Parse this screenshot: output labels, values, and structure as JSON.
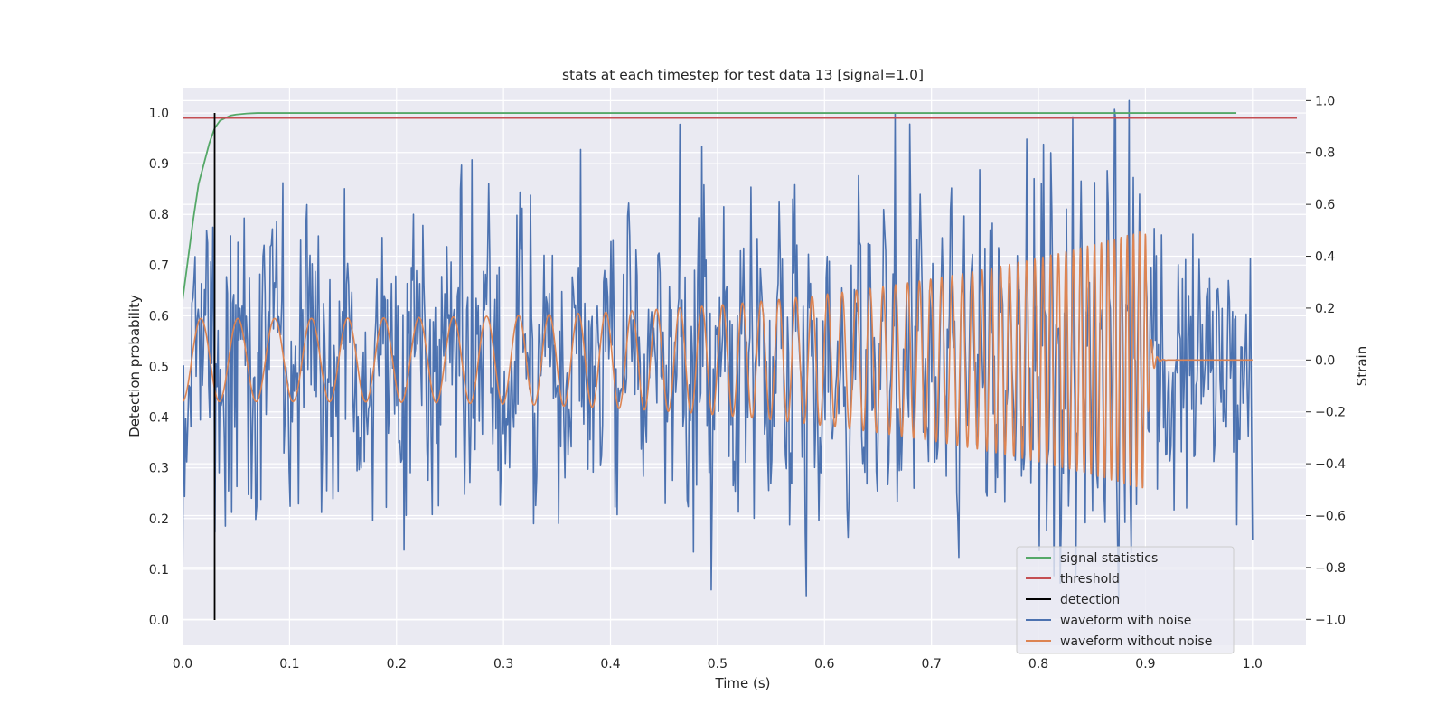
{
  "chart_data": {
    "type": "line",
    "title": "stats at each timestep for test data 13 [signal=1.0]",
    "xlabel": "Time (s)",
    "ylabel_left": "Detection probability",
    "ylabel_right": "Strain",
    "xlim": [
      0.0,
      1.05
    ],
    "ylim_left": [
      -0.05,
      1.05
    ],
    "ylim_right": [
      -1.1,
      1.05
    ],
    "x_ticks": [
      "0.0",
      "0.1",
      "0.2",
      "0.3",
      "0.4",
      "0.5",
      "0.6",
      "0.7",
      "0.8",
      "0.9",
      "1.0"
    ],
    "y_ticks_left": [
      "0.0",
      "0.1",
      "0.2",
      "0.3",
      "0.4",
      "0.5",
      "0.6",
      "0.7",
      "0.8",
      "0.9",
      "1.0"
    ],
    "y_ticks_right": [
      "-1.0",
      "-0.8",
      "-0.6",
      "-0.4",
      "-0.2",
      "0.0",
      "0.2",
      "0.4",
      "0.6",
      "0.8",
      "1.0"
    ],
    "grid": true,
    "legend_position": "lower-right",
    "threshold": 0.99,
    "detection_time": 0.03,
    "signal_statistics": {
      "x": [
        0.0,
        0.005,
        0.01,
        0.015,
        0.02,
        0.025,
        0.03,
        0.035,
        0.04,
        0.045,
        0.05,
        0.06,
        0.07,
        0.08,
        0.1,
        0.3,
        0.5,
        0.7,
        0.9,
        0.985
      ],
      "y": [
        0.63,
        0.71,
        0.79,
        0.86,
        0.9,
        0.94,
        0.97,
        0.985,
        0.99,
        0.995,
        0.997,
        0.999,
        1.0,
        1.0,
        1.0,
        1.0,
        1.0,
        1.0,
        1.0,
        1.0
      ]
    },
    "waveform_with_noise": {
      "x_start": 0.0,
      "x_end": 1.0,
      "approx_std": 0.28,
      "peak_max": {
        "x": 0.885,
        "y": 1.0
      },
      "peak_min": {
        "x": 0.0,
        "y": -0.95
      }
    },
    "waveform_without_noise": {
      "x_start": 0.0,
      "x_end": 1.0,
      "merger_time": 0.9,
      "amplitude_start": 0.16,
      "amplitude_peak": 0.5,
      "frequency_start_hz": 29,
      "frequency_end_hz": 180
    },
    "series": [
      {
        "name": "signal statistics",
        "color": "#55a868",
        "axis": "left"
      },
      {
        "name": "threshold",
        "color": "#c44e52",
        "axis": "left"
      },
      {
        "name": "detection",
        "color": "#000000",
        "axis": "left"
      },
      {
        "name": "waveform with noise",
        "color": "#4c72b0",
        "axis": "right"
      },
      {
        "name": "waveform without noise",
        "color": "#dd8452",
        "axis": "right"
      }
    ]
  }
}
